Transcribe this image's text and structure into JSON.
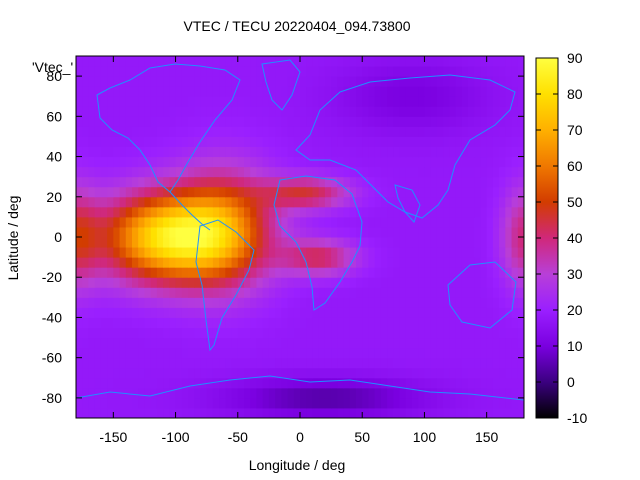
{
  "chart_data": {
    "type": "heatmap",
    "title": "VTEC / TECU 20220404_094.73800",
    "xlabel": "Longitude / deg",
    "ylabel": "Latitude / deg",
    "xlim": [
      -180,
      180
    ],
    "ylim": [
      -90,
      90
    ],
    "x_ticks": [
      -150,
      -100,
      -50,
      0,
      50,
      100,
      150
    ],
    "y_ticks": [
      -80,
      -60,
      -40,
      -20,
      0,
      20,
      40,
      60,
      80
    ],
    "colorbar": {
      "min": -10,
      "max": 90,
      "ticks": [
        -10,
        0,
        10,
        20,
        30,
        40,
        50,
        60,
        70,
        80,
        90
      ],
      "palette": [
        "#000000",
        "#3b0080",
        "#7a00e0",
        "#9a1fff",
        "#b83fd8",
        "#d0287a",
        "#d23c00",
        "#f07800",
        "#ffb000",
        "#ffe000",
        "#ffff40"
      ]
    },
    "legend_key": "'Vtec_'",
    "legend_position": "top-left",
    "background_level_tecu": 18,
    "features": [
      {
        "label": "equatorial anomaly (daytime, Americas)",
        "lon": -100,
        "lat": 0,
        "peak_tecu": 80
      },
      {
        "label": "northern crest extension (Atlantic)",
        "lon": 10,
        "lat": 20,
        "peak_tecu": 45
      },
      {
        "label": "southern crest extension (Atlantic)",
        "lon": 20,
        "lat": -10,
        "peak_tecu": 45
      },
      {
        "label": "dateline enhancement",
        "lon": 180,
        "lat": 0,
        "peak_tecu": 40
      },
      {
        "label": "Antarctic minimum",
        "lon": 20,
        "lat": -80,
        "peak_tecu": 3
      }
    ]
  }
}
